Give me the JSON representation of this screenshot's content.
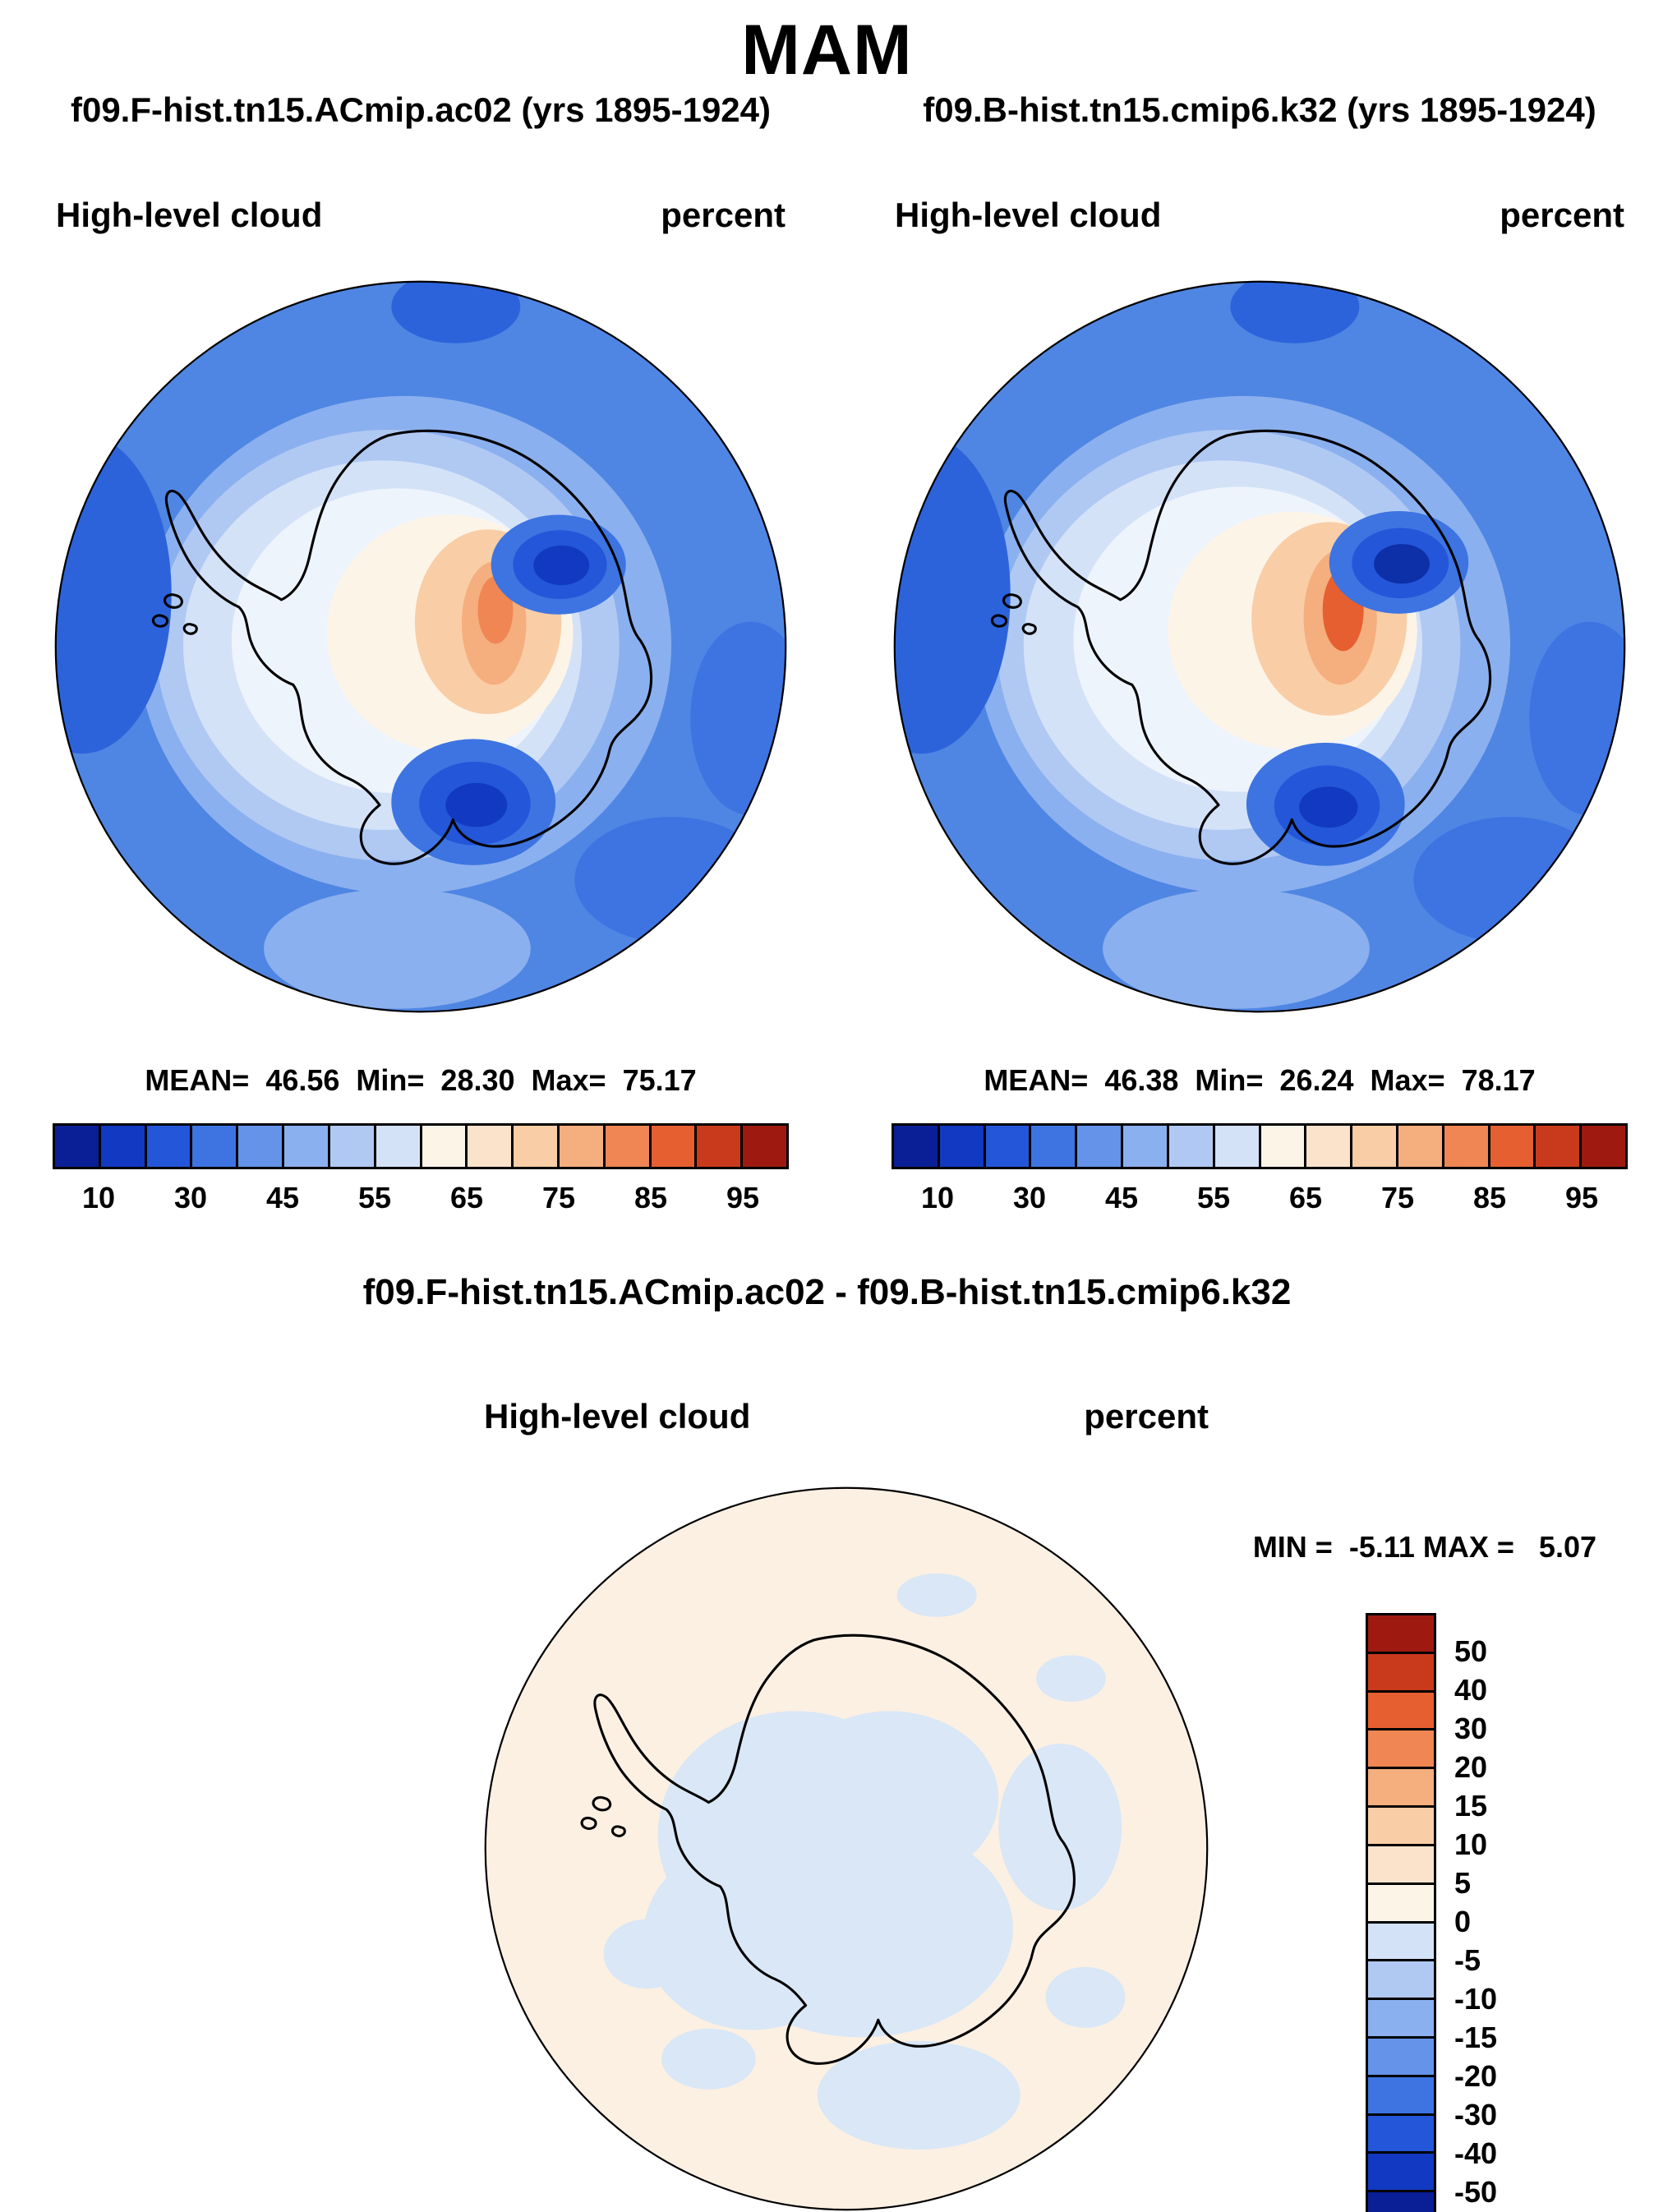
{
  "title": "MAM",
  "panels": [
    {
      "subtitle": "f09.F-hist.tn15.ACmip.ac02 (yrs 1895-1924)",
      "field_label": "High-level cloud",
      "units_label": "percent",
      "stats": "MEAN=  46.56  Min=  28.30  Max=  75.17"
    },
    {
      "subtitle": "f09.B-hist.tn15.cmip6.k32 (yrs 1895-1924)",
      "field_label": "High-level cloud",
      "units_label": "percent",
      "stats": "MEAN=  46.38  Min=  26.24  Max=  78.17"
    }
  ],
  "diff_panel": {
    "title": "f09.F-hist.tn15.ACmip.ac02 - f09.B-hist.tn15.cmip6.k32",
    "field_label": "High-level cloud",
    "units_label": "percent",
    "minmax": "MIN =  -5.11 MAX =   5.07"
  },
  "colorbar": {
    "colors": [
      "#0a1f96",
      "#1139c2",
      "#2356d9",
      "#3d74e2",
      "#6493e9",
      "#8bb0ef",
      "#b0c9f3",
      "#d4e2f8",
      "#fdf4e8",
      "#fbe3cb",
      "#f9cda6",
      "#f5ae7d",
      "#ef8653",
      "#e65f31",
      "#c93a1c",
      "#9e1a10"
    ],
    "tick_labels": [
      "10",
      "30",
      "45",
      "55",
      "65",
      "75",
      "85",
      "95"
    ]
  },
  "diff_colorbar": {
    "colors": [
      "#9e1a10",
      "#c93a1c",
      "#e65f31",
      "#ef8653",
      "#f5ae7d",
      "#f9cda6",
      "#fbe3cb",
      "#fdf4e8",
      "#d4e2f8",
      "#b0c9f3",
      "#8bb0ef",
      "#6493e9",
      "#3d74e2",
      "#2356d9",
      "#1139c2",
      "#0a1f96"
    ],
    "tick_labels": [
      "50",
      "40",
      "30",
      "20",
      "15",
      "10",
      "5",
      "0",
      "-5",
      "-10",
      "-15",
      "-20",
      "-30",
      "-40",
      "-50"
    ]
  },
  "chart_data": [
    {
      "type": "heatmap",
      "subtype": "south-polar-stereographic-contour-map",
      "season": "MAM",
      "title": "f09.F-hist.tn15.ACmip.ac02 (yrs 1895-1924)",
      "variable": "High-level cloud",
      "units": "percent",
      "mean": 46.56,
      "min": 28.3,
      "max": 75.17,
      "contour_levels": [
        10,
        20,
        30,
        40,
        45,
        50,
        55,
        60,
        65,
        70,
        75,
        80,
        85,
        90,
        95
      ],
      "labeled_levels": [
        10,
        30,
        45,
        55,
        65,
        75,
        85,
        95
      ],
      "palette": "blue-to-red",
      "legend_position": "bottom"
    },
    {
      "type": "heatmap",
      "subtype": "south-polar-stereographic-contour-map",
      "season": "MAM",
      "title": "f09.B-hist.tn15.cmip6.k32 (yrs 1895-1924)",
      "variable": "High-level cloud",
      "units": "percent",
      "mean": 46.38,
      "min": 26.24,
      "max": 78.17,
      "contour_levels": [
        10,
        20,
        30,
        40,
        45,
        50,
        55,
        60,
        65,
        70,
        75,
        80,
        85,
        90,
        95
      ],
      "labeled_levels": [
        10,
        30,
        45,
        55,
        65,
        75,
        85,
        95
      ],
      "palette": "blue-to-red",
      "legend_position": "bottom"
    },
    {
      "type": "heatmap",
      "subtype": "south-polar-stereographic-contour-map",
      "season": "MAM",
      "title": "f09.F-hist.tn15.ACmip.ac02 - f09.B-hist.tn15.cmip6.k32",
      "variable": "High-level cloud",
      "units": "percent",
      "min": -5.11,
      "max": 5.07,
      "contour_levels": [
        -50,
        -40,
        -30,
        -20,
        -15,
        -10,
        -5,
        0,
        5,
        10,
        15,
        20,
        30,
        40,
        50
      ],
      "palette": "red-positive-blue-negative",
      "legend_position": "right"
    }
  ]
}
